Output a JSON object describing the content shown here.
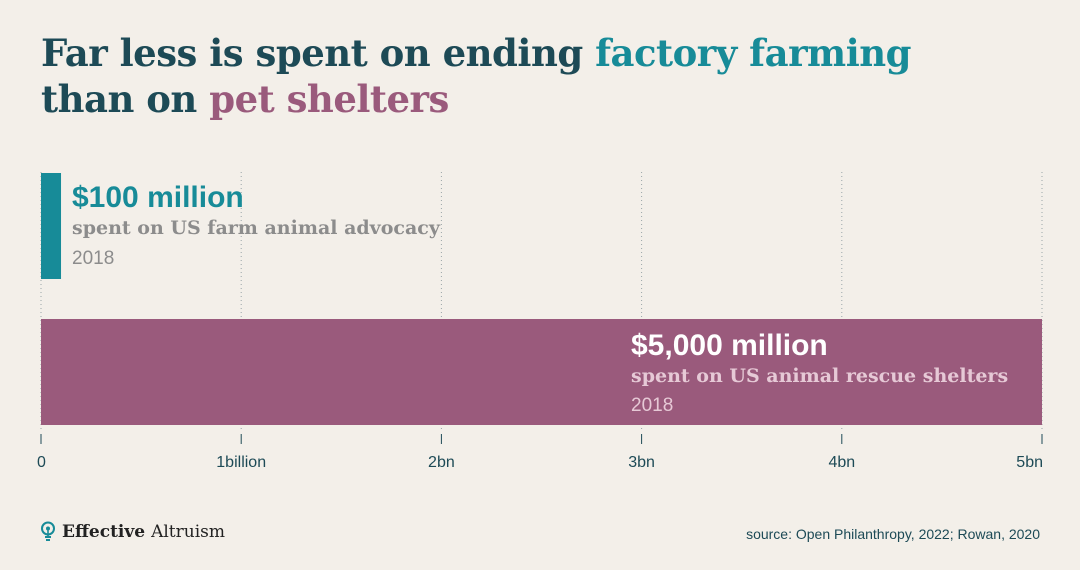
{
  "title": {
    "part1": "Far less is spent on ending ",
    "highlight1": "factory farming",
    "part2": "than on ",
    "highlight2": "pet shelters"
  },
  "colors": {
    "background": "#f3efe9",
    "title": "#1d4a56",
    "farm": "#178b98",
    "shelter": "#9a5a7c",
    "axis": "#1d4a56",
    "muted": "#8c8c8c"
  },
  "chart_data": {
    "type": "bar",
    "orientation": "horizontal",
    "title": "Far less is spent on ending factory farming than on pet shelters",
    "unit": "million USD",
    "xlim": [
      0,
      5000
    ],
    "grid": true,
    "categories": [
      "US farm animal advocacy",
      "US animal rescue shelters"
    ],
    "values": [
      100,
      5000
    ],
    "bars": [
      {
        "value": 100,
        "value_label": "$100 million",
        "description": "spent on US farm animal advocacy",
        "year": "2018",
        "color": "#178b98"
      },
      {
        "value": 5000,
        "value_label": "$5,000 million",
        "description": "spent on US animal rescue shelters",
        "year": "2018",
        "color": "#9a5a7c"
      }
    ],
    "ticks": [
      {
        "value": 0,
        "label": "0"
      },
      {
        "value": 1000,
        "label": "1billion"
      },
      {
        "value": 2000,
        "label": "2bn"
      },
      {
        "value": 3000,
        "label": "3bn"
      },
      {
        "value": 4000,
        "label": "4bn"
      },
      {
        "value": 5000,
        "label": "5bn"
      }
    ]
  },
  "footer": {
    "brand_bold": "Effective",
    "brand_regular": "Altruism",
    "source": "source: Open Philanthropy, 2022; Rowan, 2020"
  }
}
